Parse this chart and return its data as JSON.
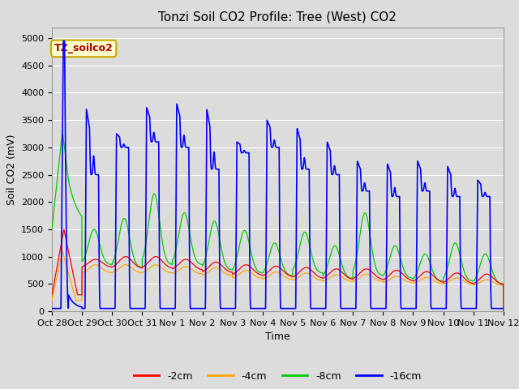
{
  "title": "Tonzi Soil CO2 Profile: Tree (West) CO2",
  "ylabel": "Soil CO2 (mV)",
  "xlabel": "Time",
  "annotation": "TZ_soilco2",
  "legend_labels": [
    "-2cm",
    "-4cm",
    "-8cm",
    "-16cm"
  ],
  "legend_colors": [
    "#ff0000",
    "#ffa500",
    "#00cc00",
    "#0000ff"
  ],
  "ylim": [
    0,
    5200
  ],
  "yticks": [
    0,
    500,
    1000,
    1500,
    2000,
    2500,
    3000,
    3500,
    4000,
    4500,
    5000
  ],
  "xtick_labels": [
    "Oct 28",
    "Oct 29",
    "Oct 30",
    "Oct 31",
    "Nov 1",
    "Nov 2",
    "Nov 3",
    "Nov 4",
    "Nov 5",
    "Nov 6",
    "Nov 7",
    "Nov 8",
    "Nov 9",
    "Nov 10",
    "Nov 11",
    "Nov 12"
  ],
  "background_color": "#dcdcdc",
  "plot_bg_color": "#dcdcdc",
  "grid_color": "#ffffff",
  "title_fontsize": 11,
  "axis_fontsize": 9,
  "tick_fontsize": 8,
  "n_days": 15,
  "blue_base": 50,
  "blue_peaks": [
    4900,
    3650,
    3200,
    3680,
    3750,
    3650,
    3050,
    3450,
    3300,
    3050,
    2700,
    2650,
    2700,
    2600,
    2350
  ],
  "blue_plateau": [
    3200,
    2500,
    3000,
    3100,
    3000,
    2600,
    2900,
    3000,
    2600,
    2500,
    2200,
    2100,
    2200,
    2100,
    2100
  ],
  "green_peaks": [
    3300,
    1500,
    1700,
    2150,
    1800,
    1650,
    1480,
    1250,
    1450,
    1200,
    1800,
    1200,
    1050,
    1250,
    1050
  ],
  "green_base": [
    1500,
    850,
    800,
    850,
    850,
    750,
    700,
    650,
    700,
    600,
    650,
    600,
    550,
    550,
    500
  ],
  "red_peaks": [
    1500,
    950,
    1000,
    1000,
    950,
    900,
    850,
    825,
    800,
    775,
    775,
    750,
    725,
    700,
    680
  ],
  "red_base": [
    300,
    800,
    780,
    780,
    750,
    700,
    650,
    625,
    600,
    575,
    575,
    550,
    525,
    500,
    480
  ],
  "orange_peaks": [
    1100,
    850,
    850,
    850,
    820,
    800,
    750,
    720,
    700,
    670,
    680,
    640,
    620,
    610,
    580
  ],
  "orange_base": [
    200,
    700,
    700,
    700,
    680,
    650,
    600,
    580,
    560,
    540,
    540,
    520,
    500,
    490,
    470
  ]
}
